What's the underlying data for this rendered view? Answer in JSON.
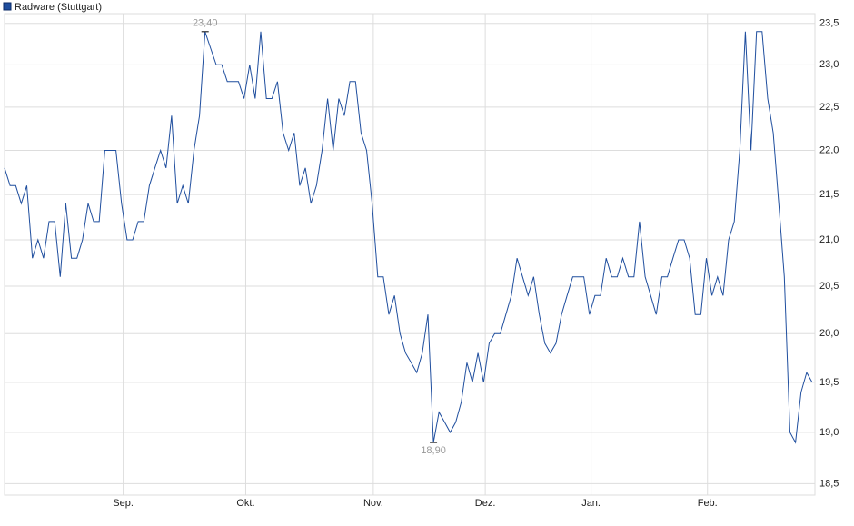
{
  "chart_data": {
    "type": "line",
    "legend": "Radware (Stuttgart)",
    "color": "#1f4e9e",
    "series": [
      {
        "name": "Radware (Stuttgart)",
        "color": "#1f4e9e",
        "values": [
          21.8,
          21.6,
          21.6,
          21.4,
          21.6,
          20.8,
          21.0,
          20.8,
          21.2,
          21.2,
          20.6,
          21.4,
          20.8,
          20.8,
          21.0,
          21.4,
          21.2,
          21.2,
          22.0,
          22.0,
          22.0,
          21.4,
          21.0,
          21.0,
          21.2,
          21.2,
          21.6,
          21.8,
          22.0,
          21.8,
          22.4,
          21.4,
          21.6,
          21.4,
          22.0,
          22.4,
          23.4,
          23.2,
          23.0,
          23.0,
          22.8,
          22.8,
          22.8,
          22.6,
          23.0,
          22.6,
          23.4,
          22.6,
          22.6,
          22.8,
          22.2,
          22.0,
          22.2,
          21.6,
          21.8,
          21.4,
          21.6,
          22.0,
          22.6,
          22.0,
          22.6,
          22.4,
          22.8,
          22.8,
          22.2,
          22.0,
          21.4,
          20.6,
          20.6,
          20.2,
          20.4,
          20.0,
          19.8,
          19.7,
          19.6,
          19.8,
          20.2,
          18.9,
          19.2,
          19.1,
          19.0,
          19.1,
          19.3,
          19.7,
          19.5,
          19.8,
          19.5,
          19.9,
          20.0,
          20.0,
          20.2,
          20.4,
          20.8,
          20.6,
          20.4,
          20.6,
          20.2,
          19.9,
          19.8,
          19.9,
          20.2,
          20.4,
          20.6,
          20.6,
          20.6,
          20.2,
          20.4,
          20.4,
          20.8,
          20.6,
          20.6,
          20.8,
          20.6,
          20.6,
          21.2,
          20.6,
          20.4,
          20.2,
          20.6,
          20.6,
          20.8,
          21.0,
          21.0,
          20.8,
          20.2,
          20.2,
          20.8,
          20.4,
          20.6,
          20.4,
          21.0,
          21.2,
          22.0,
          23.4,
          22.0,
          23.4,
          23.4,
          22.6,
          22.2,
          21.4,
          20.6,
          19.0,
          18.9,
          19.4,
          19.6,
          19.5
        ]
      }
    ],
    "xlim": [
      0,
      145
    ],
    "xticks": [
      {
        "value": 21.3,
        "label": "Sep."
      },
      {
        "value": 43.3,
        "label": "Okt."
      },
      {
        "value": 66.2,
        "label": "Nov."
      },
      {
        "value": 86.3,
        "label": "Dez."
      },
      {
        "value": 105.3,
        "label": "Jan."
      },
      {
        "value": 126.2,
        "label": "Feb."
      }
    ],
    "ylim": [
      18.39,
      23.62
    ],
    "log_scale": true,
    "grid": true,
    "yticks": [
      {
        "value": 18.5,
        "label": "18,5"
      },
      {
        "value": 19,
        "label": "19,0"
      },
      {
        "value": 19.5,
        "label": "19,5"
      },
      {
        "value": 20,
        "label": "20,0"
      },
      {
        "value": 20.5,
        "label": "20,5"
      },
      {
        "value": 21,
        "label": "21,0"
      },
      {
        "value": 21.5,
        "label": "21,5"
      },
      {
        "value": 22,
        "label": "22,0"
      },
      {
        "value": 22.5,
        "label": "22,5"
      },
      {
        "value": 23,
        "label": "23,0"
      },
      {
        "value": 23.5,
        "label": "23,5"
      }
    ],
    "annotations": [
      {
        "x": 36,
        "value": 23.4,
        "label": "23,40",
        "position": "above"
      },
      {
        "x": 77,
        "value": 18.9,
        "label": "18,90",
        "position": "below"
      }
    ]
  }
}
